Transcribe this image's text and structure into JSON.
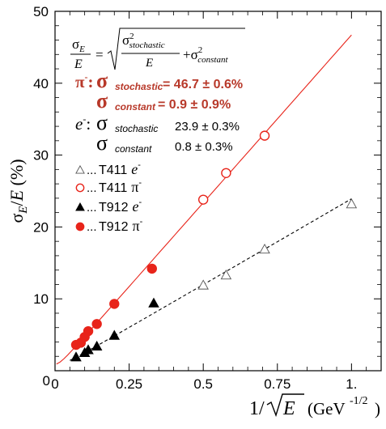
{
  "chart_data": {
    "type": "scatter",
    "xlabel_parts": {
      "prefix": "1/",
      "var": "E",
      "unit": "(GeV",
      "exp": "-1/2",
      "close": ")"
    },
    "ylabel_parts": {
      "sigma": "σ",
      "sub": "E",
      "rest": "/",
      "var": "E",
      "unit": " (%)"
    },
    "xlim": [
      0,
      1.1
    ],
    "ylim": [
      0,
      50
    ],
    "x_ticks": [
      {
        "value": 0,
        "label": "0"
      },
      {
        "value": 0.25,
        "label": "0.25"
      },
      {
        "value": 0.5,
        "label": "0.5"
      },
      {
        "value": 0.75,
        "label": "0.75"
      },
      {
        "value": 1.0,
        "label": "1."
      }
    ],
    "y_ticks": [
      {
        "value": 10,
        "label": "10"
      },
      {
        "value": 20,
        "label": "20"
      },
      {
        "value": 30,
        "label": "30"
      },
      {
        "value": 40,
        "label": "40"
      },
      {
        "value": 50,
        "label": "50"
      }
    ],
    "series": [
      {
        "name": "T411 e⁻",
        "marker": "open-triangle",
        "color": "#000000",
        "x": [
          0.5,
          0.577,
          0.707,
          1.0
        ],
        "y": [
          11.9,
          13.3,
          16.9,
          23.2
        ]
      },
      {
        "name": "T411 π⁻",
        "marker": "open-circle",
        "color": "#e8241a",
        "x": [
          0.5,
          0.577,
          0.707
        ],
        "y": [
          23.8,
          27.5,
          32.7
        ]
      },
      {
        "name": "T912 e⁻",
        "marker": "filled-triangle",
        "color": "#000000",
        "x": [
          0.071,
          0.1,
          0.112,
          0.141,
          0.2,
          0.333
        ],
        "y": [
          1.9,
          2.5,
          2.9,
          3.4,
          4.9,
          9.4
        ]
      },
      {
        "name": "T912 π⁻",
        "marker": "filled-circle",
        "color": "#e8241a",
        "x": [
          0.071,
          0.087,
          0.1,
          0.112,
          0.141,
          0.2,
          0.327
        ],
        "y": [
          3.6,
          3.9,
          4.7,
          5.5,
          6.5,
          9.3,
          14.2
        ]
      }
    ],
    "fits": [
      {
        "name": "pion fit",
        "stochastic": 46.7,
        "constant": 0.9,
        "style": "solid",
        "color": "#e8241a",
        "x_range": [
          0.005,
          1.0
        ]
      },
      {
        "name": "electron fit",
        "stochastic": 23.9,
        "constant": 0.8,
        "style": "dashed",
        "color": "#000000",
        "x_range": [
          0.05,
          1.0
        ]
      }
    ],
    "legend_placement": "middle-left",
    "legend": [
      {
        "marker": "open-triangle",
        "dots": "...",
        "label": "T411",
        "particle": "e",
        "charge": "-"
      },
      {
        "marker": "open-circle",
        "dots": "...",
        "label": "T411",
        "particle": "π",
        "charge": "-"
      },
      {
        "marker": "filled-triangle",
        "dots": "...",
        "label": "T912",
        "particle": "e",
        "charge": "-"
      },
      {
        "marker": "filled-circle",
        "dots": "...",
        "label": "T912",
        "particle": "π",
        "charge": "-"
      }
    ],
    "formula": {
      "lhs_num": "σ",
      "lhs_num_sub": "E",
      "lhs_den": "E",
      "eq": "=",
      "rad_num": "σ",
      "rad_num_sup": "2",
      "rad_num_sub": "stochastic",
      "rad_den": "E",
      "plus": "+σ",
      "plus_sup": "2",
      "plus_sub": "constant"
    },
    "annotations": {
      "pion": {
        "particle": "π",
        "charge": "-",
        "colon": ":",
        "sigma": "σ",
        "stochastic_label": "stochastic",
        "stochastic_value": "= 46.7 ± 0.6%",
        "constant_label": "constant",
        "constant_value": "= 0.9 ± 0.9%",
        "color": "#b8392a"
      },
      "electron": {
        "particle": "e",
        "charge": "-",
        "colon": ":",
        "sigma": "σ",
        "stochastic_label": "stochastic",
        "stochastic_value": "23.9 ± 0.3%",
        "constant_label": "constant",
        "constant_value": "0.8 ± 0.3%"
      }
    }
  }
}
